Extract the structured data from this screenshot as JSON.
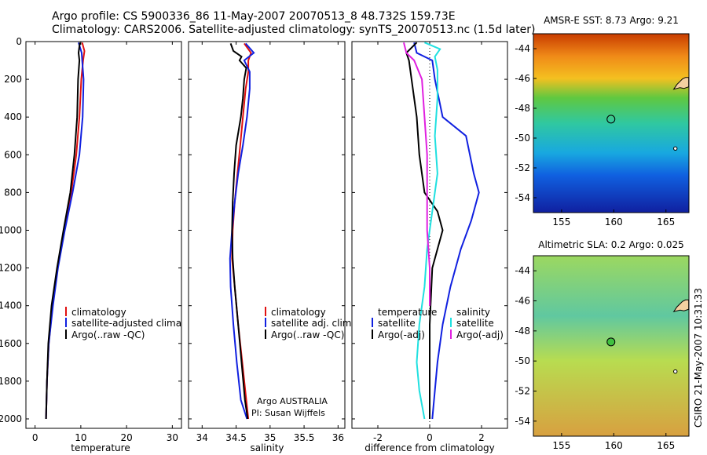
{
  "header": {
    "title_line1": "Argo profile: CS 5900336_86 11-May-2007 20070513_8 48.732S 159.73E",
    "title_line2": "Climatology: CARS2006. Satellite-adjusted climatology: synTS_20070513.nc (1.5d later)"
  },
  "footer": {
    "credit_line1": "Argo AUSTRALIA",
    "credit_line2": "PI: Susan Wijffels",
    "stamp": "CSIRO 21-May-2007 10:31:33"
  },
  "colors": {
    "climatology": "#e01010",
    "satellite": "#1020e0",
    "argo": "#000000",
    "sal_satellite": "#20e0e0",
    "sal_argo": "#e020e0"
  },
  "chart_data": [
    {
      "type": "line",
      "xlabel": "temperature",
      "ylabel": "",
      "xlim": [
        -2,
        32
      ],
      "ylim": [
        2050,
        0
      ],
      "xticks": [
        0,
        10,
        20,
        30
      ],
      "yticks": [
        0,
        200,
        400,
        600,
        800,
        1000,
        1200,
        1400,
        1600,
        1800,
        2000
      ],
      "legend": [
        "climatology",
        "satellite-adjusted climatology",
        "Argo(..raw -QC)"
      ],
      "series": [
        {
          "name": "climatology",
          "color": "climatology",
          "values": [
            [
              10.3,
              5
            ],
            [
              10.8,
              50
            ],
            [
              10.5,
              100
            ],
            [
              10.1,
              200
            ],
            [
              9.7,
              400
            ],
            [
              9.0,
              600
            ],
            [
              7.9,
              800
            ],
            [
              6.3,
              1000
            ],
            [
              4.9,
              1200
            ],
            [
              3.8,
              1400
            ],
            [
              3.0,
              1600
            ],
            [
              2.6,
              1800
            ],
            [
              2.4,
              2000
            ]
          ]
        },
        {
          "name": "satellite-adjusted climatology",
          "color": "satellite",
          "values": [
            [
              9.5,
              5
            ],
            [
              10.2,
              60
            ],
            [
              10.3,
              100
            ],
            [
              10.6,
              200
            ],
            [
              10.4,
              400
            ],
            [
              9.7,
              600
            ],
            [
              8.2,
              800
            ],
            [
              6.5,
              1000
            ],
            [
              5.0,
              1200
            ],
            [
              3.9,
              1400
            ],
            [
              3.0,
              1600
            ],
            [
              2.6,
              1800
            ],
            [
              2.4,
              2000
            ]
          ]
        },
        {
          "name": "Argo(..raw -QC)",
          "color": "argo",
          "values": [
            [
              9.8,
              5
            ],
            [
              9.5,
              60
            ],
            [
              9.7,
              100
            ],
            [
              9.4,
              200
            ],
            [
              9.2,
              400
            ],
            [
              8.6,
              600
            ],
            [
              7.7,
              800
            ],
            [
              6.2,
              1000
            ],
            [
              4.8,
              1200
            ],
            [
              3.6,
              1400
            ],
            [
              2.9,
              1600
            ],
            [
              2.6,
              1800
            ],
            [
              2.4,
              2000
            ]
          ]
        }
      ]
    },
    {
      "type": "line",
      "xlabel": "salinity",
      "ylabel": "",
      "xlim": [
        33.8,
        36.1
      ],
      "ylim": [
        2050,
        0
      ],
      "xticks": [
        34,
        34.5,
        35,
        35.5,
        36
      ],
      "legend": [
        "climatology",
        "satellite adj. clim.",
        "Argo(..raw -QC)"
      ],
      "series": [
        {
          "name": "climatology",
          "color": "climatology",
          "values": [
            [
              34.62,
              10
            ],
            [
              34.72,
              60
            ],
            [
              34.68,
              100
            ],
            [
              34.68,
              160
            ],
            [
              34.64,
              250
            ],
            [
              34.6,
              400
            ],
            [
              34.56,
              550
            ],
            [
              34.52,
              700
            ],
            [
              34.48,
              850
            ],
            [
              34.45,
              1000
            ],
            [
              34.44,
              1150
            ],
            [
              34.48,
              1300
            ],
            [
              34.53,
              1500
            ],
            [
              34.59,
              1700
            ],
            [
              34.65,
              1900
            ],
            [
              34.68,
              2000
            ]
          ]
        },
        {
          "name": "satellite adj. clim.",
          "color": "satellite",
          "values": [
            [
              34.64,
              10
            ],
            [
              34.76,
              60
            ],
            [
              34.62,
              100
            ],
            [
              34.7,
              160
            ],
            [
              34.7,
              250
            ],
            [
              34.66,
              400
            ],
            [
              34.6,
              550
            ],
            [
              34.53,
              700
            ],
            [
              34.48,
              850
            ],
            [
              34.44,
              1000
            ],
            [
              34.41,
              1150
            ],
            [
              34.42,
              1300
            ],
            [
              34.46,
              1500
            ],
            [
              34.51,
              1700
            ],
            [
              34.57,
              1900
            ],
            [
              34.66,
              2000
            ]
          ]
        },
        {
          "name": "Argo(..raw -QC)",
          "color": "argo",
          "values": [
            [
              34.42,
              10
            ],
            [
              34.46,
              50
            ],
            [
              34.58,
              80
            ],
            [
              34.55,
              100
            ],
            [
              34.65,
              140
            ],
            [
              34.62,
              200
            ],
            [
              34.6,
              300
            ],
            [
              34.57,
              400
            ],
            [
              34.5,
              550
            ],
            [
              34.47,
              700
            ],
            [
              34.45,
              850
            ],
            [
              34.44,
              1000
            ],
            [
              34.45,
              1150
            ],
            [
              34.48,
              1300
            ],
            [
              34.53,
              1500
            ],
            [
              34.58,
              1700
            ],
            [
              34.63,
              1900
            ],
            [
              34.67,
              2000
            ]
          ]
        }
      ]
    },
    {
      "type": "line",
      "xlabel": "difference from climatology",
      "ylabel": "",
      "xlim": [
        -3,
        3
      ],
      "ylim": [
        2050,
        0
      ],
      "xticks": [
        -2,
        0,
        2
      ],
      "legend": [
        "temperature",
        "satellite",
        "Argo(-adj)",
        "salinity",
        "satellite",
        "Argo(-adj)"
      ],
      "series": [
        {
          "name": "satellite",
          "group": "temperature",
          "color": "satellite",
          "values": [
            [
              -0.6,
              5
            ],
            [
              -0.5,
              60
            ],
            [
              0.1,
              100
            ],
            [
              0.2,
              200
            ],
            [
              0.5,
              400
            ],
            [
              1.4,
              500
            ],
            [
              1.7,
              700
            ],
            [
              1.9,
              800
            ],
            [
              1.6,
              950
            ],
            [
              1.2,
              1100
            ],
            [
              0.8,
              1300
            ],
            [
              0.5,
              1500
            ],
            [
              0.3,
              1700
            ],
            [
              0.2,
              1850
            ],
            [
              0.1,
              2000
            ]
          ]
        },
        {
          "name": "Argo(-adj)",
          "group": "temperature",
          "color": "argo",
          "values": [
            [
              -0.5,
              5
            ],
            [
              -0.9,
              60
            ],
            [
              -0.8,
              100
            ],
            [
              -0.7,
              200
            ],
            [
              -0.5,
              400
            ],
            [
              -0.4,
              600
            ],
            [
              -0.2,
              800
            ],
            [
              0.3,
              900
            ],
            [
              0.5,
              1000
            ],
            [
              0.3,
              1100
            ],
            [
              0.1,
              1200
            ],
            [
              0.0,
              1500
            ],
            [
              0.0,
              2000
            ]
          ]
        },
        {
          "name": "satellite",
          "group": "salinity",
          "color": "sal_satellite",
          "values": [
            [
              -0.2,
              5
            ],
            [
              0.4,
              40
            ],
            [
              0.2,
              80
            ],
            [
              0.3,
              150
            ],
            [
              0.3,
              300
            ],
            [
              0.2,
              500
            ],
            [
              0.3,
              700
            ],
            [
              0.1,
              900
            ],
            [
              -0.1,
              1100
            ],
            [
              -0.2,
              1300
            ],
            [
              -0.4,
              1500
            ],
            [
              -0.5,
              1700
            ],
            [
              -0.4,
              1850
            ],
            [
              -0.2,
              2000
            ]
          ]
        },
        {
          "name": "Argo(-adj)",
          "group": "salinity",
          "color": "sal_argo",
          "values": [
            [
              -1.0,
              5
            ],
            [
              -0.9,
              60
            ],
            [
              -0.6,
              100
            ],
            [
              -0.3,
              200
            ],
            [
              -0.2,
              400
            ],
            [
              -0.1,
              600
            ],
            [
              -0.1,
              800
            ],
            [
              -0.1,
              1000
            ],
            [
              0.0,
              1200
            ],
            [
              0.0,
              1400
            ]
          ]
        }
      ]
    },
    {
      "type": "heatmap",
      "title": "AMSR-E SST: 8.73 Argo: 9.21",
      "xlim": [
        152.3,
        167.2
      ],
      "ylim": [
        -55,
        -43
      ],
      "xticks": [
        155,
        160,
        165
      ],
      "yticks": [
        -44,
        -46,
        -48,
        -50,
        -52,
        -54
      ],
      "marker": {
        "lon": 159.73,
        "lat": -48.73,
        "fill": "none"
      },
      "bands": [
        {
          "lat": -43,
          "color": "#c83c00"
        },
        {
          "lat": -44.5,
          "color": "#f08a18"
        },
        {
          "lat": -46,
          "color": "#f4c020"
        },
        {
          "lat": -47.3,
          "color": "#60c840"
        },
        {
          "lat": -49,
          "color": "#30c8a0"
        },
        {
          "lat": -51,
          "color": "#18a8e0"
        },
        {
          "lat": -52.5,
          "color": "#1060e0"
        },
        {
          "lat": -55,
          "color": "#1020a0"
        }
      ]
    },
    {
      "type": "heatmap",
      "title": "Altimetric SLA: 0.2 Argo: 0.025",
      "xlim": [
        152.3,
        167.2
      ],
      "ylim": [
        -55,
        -43
      ],
      "xticks": [
        155,
        160,
        165
      ],
      "yticks": [
        -44,
        -46,
        -48,
        -50,
        -52,
        -54
      ],
      "marker": {
        "lon": 159.73,
        "lat": -48.73,
        "fill": "#40c040"
      },
      "bands": [
        {
          "lat": -43,
          "color": "#9cd860"
        },
        {
          "lat": -47,
          "color": "#60c8a0"
        },
        {
          "lat": -50,
          "color": "#b8dc50"
        },
        {
          "lat": -55,
          "color": "#d8a040"
        }
      ]
    }
  ]
}
